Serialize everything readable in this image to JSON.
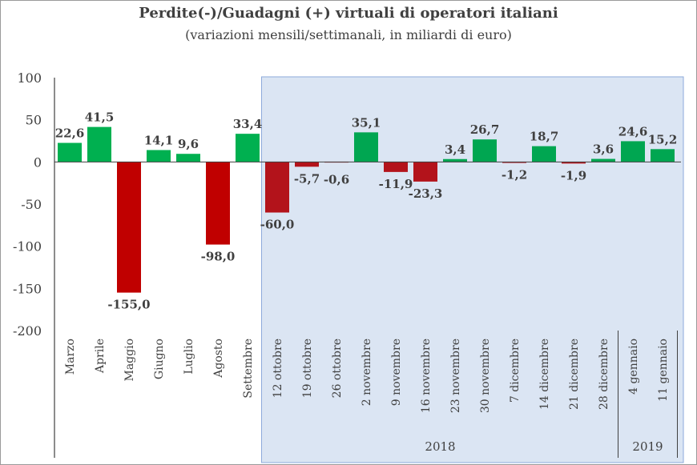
{
  "chart_data": {
    "type": "bar",
    "title": "Perdite(-)/Guadagni (+) virtuali di operatori italiani",
    "subtitle": "(variazioni mensili/settimanali, in miliardi di euro)",
    "xlabel": "",
    "ylabel": "",
    "ylim": [
      -200,
      100
    ],
    "yticks": [
      100,
      50,
      0,
      -50,
      -100,
      -150,
      -200
    ],
    "ytick_labels": [
      "100",
      "50",
      "0",
      "-50",
      "-100",
      "-150",
      "-200"
    ],
    "categories": [
      "Marzo",
      "Aprile",
      "Maggio",
      "Giugno",
      "Luglio",
      "Agosto",
      "Settembre",
      "12 ottobre",
      "19 ottobre",
      "26 ottobre",
      "2 novembre",
      "9 novembre",
      "16 novembre",
      "23 novembre",
      "30 novembre",
      "7 dicembre",
      "14 dicembre",
      "21 dicembre",
      "28 dicembre",
      "4 gennaio",
      "11 gennaio"
    ],
    "values": [
      22.6,
      41.5,
      -155.0,
      14.1,
      9.6,
      -98.0,
      33.4,
      -60.0,
      -5.7,
      -0.6,
      35.1,
      -11.9,
      -23.3,
      3.4,
      26.7,
      -1.2,
      18.7,
      -1.9,
      3.6,
      24.6,
      15.2
    ],
    "value_labels": [
      "22,6",
      "41,5",
      "-155,0",
      "14,1",
      "9,6",
      "-98,0",
      "33,4",
      "-60,0",
      "-5,7",
      "-0,6",
      "35,1",
      "-11,9",
      "-23,3",
      "3,4",
      "26,7",
      "-1,2",
      "18,7",
      "-1,9",
      "3,6",
      "24,6",
      "15,2"
    ],
    "year_groups": [
      {
        "label": "2018",
        "from": 7,
        "to": 18
      },
      {
        "label": "2019",
        "from": 19,
        "to": 20
      }
    ],
    "shaded_from": 7,
    "grid": false,
    "colors": {
      "gain": "#00b050",
      "loss_monthly": "#c00000",
      "gain_weekly": "#00a651",
      "loss_weekly": "#b3131b",
      "shade": "#dbe5f3",
      "axis": "#404040",
      "text": "#404040"
    }
  }
}
